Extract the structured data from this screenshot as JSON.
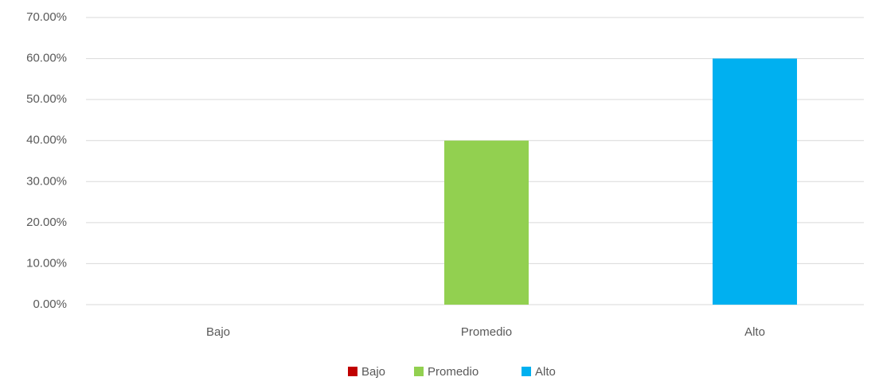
{
  "chart_data": {
    "type": "bar",
    "categories": [
      "Bajo",
      "Promedio",
      "Alto"
    ],
    "values": [
      0,
      40,
      60
    ],
    "colors": [
      "#c00000",
      "#92d050",
      "#00b0f0"
    ],
    "ylim": [
      0,
      70
    ],
    "yticks": [
      {
        "value": 0,
        "label": "0.00%"
      },
      {
        "value": 10,
        "label": "10.00%"
      },
      {
        "value": 20,
        "label": "20.00%"
      },
      {
        "value": 30,
        "label": "30.00%"
      },
      {
        "value": 40,
        "label": "40.00%"
      },
      {
        "value": 50,
        "label": "50.00%"
      },
      {
        "value": 60,
        "label": "60.00%"
      },
      {
        "value": 70,
        "label": "70.00%"
      }
    ],
    "grid": true,
    "legend": "bottom"
  }
}
